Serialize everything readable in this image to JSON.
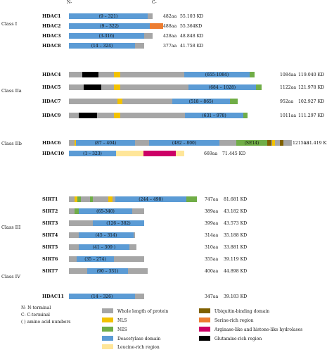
{
  "colors": {
    "whole": "#A6A6A6",
    "nls": "#F2C200",
    "nes": "#70AD47",
    "deacetylase": "#5B9BD5",
    "leucine": "#FFE699",
    "ubiquitin": "#7F6000",
    "serine": "#ED7D31",
    "arginase": "#CC0066",
    "glutamine": "#000000"
  },
  "termini": {
    "n": "N-",
    "c": "C-"
  },
  "classes": [
    {
      "name": "Class I",
      "proteins": [
        {
          "name": "HDAC1",
          "length": "482aa",
          "mass": "55.103 KD",
          "segments": [
            {
              "type": "deacetylase",
              "label": "(9 – 321)"
            }
          ]
        },
        {
          "name": "HDAC2",
          "length": "488aa",
          "mass": "55.364KD",
          "segments": [
            {
              "type": "deacetylase",
              "label": "(9 – 322)"
            },
            {
              "type": "serine",
              "label": ""
            }
          ]
        },
        {
          "name": "HDAC3",
          "length": "428aa",
          "mass": "48.848 KD",
          "segments": [
            {
              "type": "deacetylase",
              "label": "(3-316)"
            }
          ]
        },
        {
          "name": "HDAC8",
          "length": "377aa",
          "mass": "41.758 KD",
          "segments": [
            {
              "type": "deacetylase",
              "label": "(14 – 324)"
            }
          ]
        }
      ]
    },
    {
      "name": "Class IIa",
      "proteins": [
        {
          "name": "HDAC4",
          "length": "1084aa",
          "mass": "119.040 KD",
          "segments": [
            {
              "type": "glutamine",
              "label": ""
            },
            {
              "type": "nls",
              "label": ""
            },
            {
              "type": "deacetylase",
              "label": "(655-1084)"
            },
            {
              "type": "nes",
              "label": ""
            }
          ]
        },
        {
          "name": "HDAC5",
          "length": "1122aa",
          "mass": "121.978 KD",
          "segments": [
            {
              "type": "glutamine",
              "label": ""
            },
            {
              "type": "nls",
              "label": ""
            },
            {
              "type": "deacetylase",
              "label": "(684 – 1028)"
            },
            {
              "type": "nes",
              "label": ""
            }
          ]
        },
        {
          "name": "HDAC7",
          "length": "952aa",
          "mass": "102.927 KD",
          "segments": [
            {
              "type": "nls",
              "label": ""
            },
            {
              "type": "deacetylase",
              "label": "(518 – 865)"
            },
            {
              "type": "nes",
              "label": ""
            }
          ]
        },
        {
          "name": "HDAC9",
          "length": "1011aa",
          "mass": "111.297 KD",
          "segments": [
            {
              "type": "glutamine",
              "label": ""
            },
            {
              "type": "nls",
              "label": ""
            },
            {
              "type": "deacetylase",
              "label": "(631 – 978)"
            },
            {
              "type": "nes",
              "label": ""
            }
          ]
        }
      ]
    },
    {
      "name": "Class IIb",
      "proteins": [
        {
          "name": "HDAC6",
          "length": "1215aa",
          "mass": "131.419 KD",
          "segments": [
            {
              "type": "nls",
              "label": ""
            },
            {
              "type": "deacetylase",
              "label": "(87 – 404)"
            },
            {
              "type": "deacetylase",
              "label": "(482 – 800)"
            },
            {
              "type": "nes",
              "label": "(SE14)"
            },
            {
              "type": "ubiquitin",
              "label": ""
            },
            {
              "type": "nls",
              "label": ""
            },
            {
              "type": "ubiquitin",
              "label": ""
            }
          ]
        },
        {
          "name": "HDAC10",
          "length": "669aa",
          "mass": "71.445 KD",
          "segments": [
            {
              "type": "deacetylase",
              "label": "(1 – 323)"
            },
            {
              "type": "leucine",
              "label": ""
            },
            {
              "type": "arginase",
              "label": ""
            },
            {
              "type": "leucine",
              "label": ""
            }
          ]
        }
      ]
    },
    {
      "name": "Class III",
      "proteins": [
        {
          "name": "SIRT1",
          "length": "747aa",
          "mass": "81.681 KD",
          "segments": [
            {
              "type": "nls",
              "label": ""
            },
            {
              "type": "nes",
              "label": ""
            },
            {
              "type": "nes",
              "label": ""
            },
            {
              "type": "nls",
              "label": ""
            },
            {
              "type": "deacetylase",
              "label": "(244 – 498)"
            },
            {
              "type": "nes",
              "label": ""
            }
          ]
        },
        {
          "name": "SIRT2",
          "length": "389aa",
          "mass": "43.182 KD",
          "segments": [
            {
              "type": "nes",
              "label": ""
            },
            {
              "type": "deacetylase",
              "label": "(65-340)"
            }
          ]
        },
        {
          "name": "SIRT3",
          "length": "399aa",
          "mass": "43.573 KD",
          "segments": [
            {
              "type": "deacetylase",
              "label": "(126 – 382)"
            }
          ]
        },
        {
          "name": "SIRT4",
          "length": "314aa",
          "mass": "35.188 KD",
          "segments": [
            {
              "type": "deacetylase",
              "label": "(45 – 314)"
            }
          ]
        },
        {
          "name": "SIRT5",
          "length": "310aa",
          "mass": "33.881 KD",
          "segments": [
            {
              "type": "deacetylase",
              "label": "(41 – 309 )"
            }
          ]
        },
        {
          "name": "SIRT6",
          "length": "355aa",
          "mass": "39.119 KD",
          "segments": [
            {
              "type": "deacetylase",
              "label": "(35 – 274)"
            }
          ]
        },
        {
          "name": "SIRT7",
          "length": "400aa",
          "mass": "44.898 KD",
          "segments": [
            {
              "type": "deacetylase",
              "label": "(90 – 331)"
            }
          ]
        }
      ]
    },
    {
      "name": "Class IV",
      "proteins": [
        {
          "name": "HDAC11",
          "length": "347aa",
          "mass": "39.183 KD",
          "segments": [
            {
              "type": "deacetylase",
              "label": "(14 – 326)"
            }
          ]
        }
      ]
    }
  ],
  "notes": [
    "N-  N-terminal",
    "C-  C-terminal",
    "( )  amino acid numbers"
  ],
  "legend": [
    {
      "type": "whole",
      "label": "Whole length of protein"
    },
    {
      "type": "nls",
      "label": "NLS"
    },
    {
      "type": "nes",
      "label": "NES"
    },
    {
      "type": "deacetylase",
      "label": "Deacetylase domain"
    },
    {
      "type": "leucine",
      "label": "Leucine-rich region"
    },
    {
      "type": "ubiquitin",
      "label": "Ubiquitin-binding domain"
    },
    {
      "type": "serine",
      "label": "Serine-rich region"
    },
    {
      "type": "arginase",
      "label": "Arginase-like and histone-like hydrolases"
    },
    {
      "type": "glutamine",
      "label": "Glutamine-rich region"
    }
  ]
}
